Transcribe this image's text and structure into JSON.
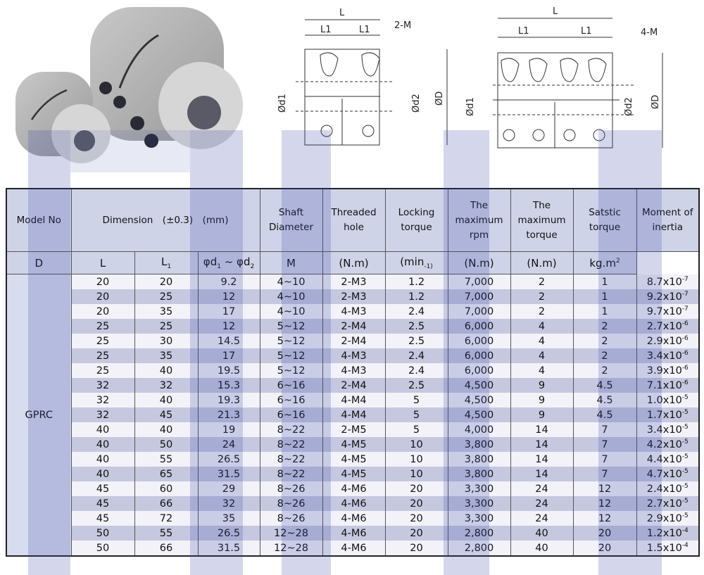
{
  "drawings": {
    "left": {
      "L": "L",
      "L1": "L1",
      "hole": "2-M",
      "d1": "Ød1",
      "d2": "Ød2",
      "D": "ØD"
    },
    "right": {
      "L": "L",
      "L1": "L1",
      "hole": "4-M",
      "d1": "Ød1",
      "d2": "Ød2",
      "D": "ØD"
    }
  },
  "colors": {
    "header_bg": "#cfd3e8",
    "row_alt": "#c5c8df",
    "watermark": "#3b4aa8"
  },
  "table": {
    "headers": [
      "Model No",
      "Dimension　(±0.3)　(mm)",
      "Shaft Diameter",
      "Threaded hole",
      "Locking torque",
      "The maximum rpm",
      "The maximum torque",
      "Satstic torque",
      "Moment of inertia"
    ],
    "subheaders": {
      "D": "D",
      "L": "L",
      "L1": "L",
      "L1_sub": "1",
      "shaft": "φd",
      "shaft_sub1": "1",
      "shaft_mid": " ~ φd",
      "shaft_sub2": "2",
      "M": "M",
      "lock": "(N.m)",
      "rpm": "(min",
      "rpm_sub": "-1)",
      "torque": "(N.m)",
      "static": "(N.m)",
      "inertia": "kg.m",
      "inertia_sup": "2"
    },
    "model": "GPRC",
    "rows": [
      [
        "20",
        "20",
        "9.2",
        "4~10",
        "2-M3",
        "1.2",
        "7,000",
        "2",
        "1",
        "8.7x10",
        "-7"
      ],
      [
        "20",
        "25",
        "12",
        "4~10",
        "2-M3",
        "1.2",
        "7,000",
        "2",
        "1",
        "9.2x10",
        "-7"
      ],
      [
        "20",
        "35",
        "17",
        "4~10",
        "4-M3",
        "2.4",
        "7,000",
        "2",
        "1",
        "9.7x10",
        "-7"
      ],
      [
        "25",
        "25",
        "12",
        "5~12",
        "2-M4",
        "2.5",
        "6,000",
        "4",
        "2",
        "2.7x10",
        "-6"
      ],
      [
        "25",
        "30",
        "14.5",
        "5~12",
        "2-M4",
        "2.5",
        "6,000",
        "4",
        "2",
        "2.9x10",
        "-6"
      ],
      [
        "25",
        "35",
        "17",
        "5~12",
        "4-M3",
        "2.4",
        "6,000",
        "4",
        "2",
        "3.4x10",
        "-6"
      ],
      [
        "25",
        "40",
        "19.5",
        "5~12",
        "4-M3",
        "2.4",
        "6,000",
        "4",
        "2",
        "3.9x10",
        "-6"
      ],
      [
        "32",
        "32",
        "15.3",
        "6~16",
        "2-M4",
        "2.5",
        "4,500",
        "9",
        "4.5",
        "7.1x10",
        "-6"
      ],
      [
        "32",
        "40",
        "19.3",
        "6~16",
        "4-M4",
        "5",
        "4,500",
        "9",
        "4.5",
        "1.0x10",
        "-5"
      ],
      [
        "32",
        "45",
        "21.3",
        "6~16",
        "4-M4",
        "5",
        "4,500",
        "9",
        "4.5",
        "1.7x10",
        "-5"
      ],
      [
        "40",
        "40",
        "19",
        "8~22",
        "2-M5",
        "5",
        "4,000",
        "14",
        "7",
        "3.4x10",
        "-5"
      ],
      [
        "40",
        "50",
        "24",
        "8~22",
        "4-M5",
        "10",
        "3,800",
        "14",
        "7",
        "4.2x10",
        "-5"
      ],
      [
        "40",
        "55",
        "26.5",
        "8~22",
        "4-M5",
        "10",
        "3,800",
        "14",
        "7",
        "4.4x10",
        "-5"
      ],
      [
        "40",
        "65",
        "31.5",
        "8~22",
        "4-M5",
        "10",
        "3,800",
        "14",
        "7",
        "4.7x10",
        "-5"
      ],
      [
        "45",
        "60",
        "29",
        "8~26",
        "4-M6",
        "20",
        "3,300",
        "24",
        "12",
        "2.4x10",
        "-5"
      ],
      [
        "45",
        "66",
        "32",
        "8~26",
        "4-M6",
        "20",
        "3,300",
        "24",
        "12",
        "2.7x10",
        "-5"
      ],
      [
        "45",
        "72",
        "35",
        "8~26",
        "4-M6",
        "20",
        "3,300",
        "24",
        "12",
        "2.9x10",
        "-5"
      ],
      [
        "50",
        "55",
        "26.5",
        "12~28",
        "4-M6",
        "20",
        "2,800",
        "40",
        "20",
        "1.2x10",
        "-4"
      ],
      [
        "50",
        "66",
        "31.5",
        "12~28",
        "4-M6",
        "20",
        "2,800",
        "40",
        "20",
        "1.5x10",
        "-4"
      ]
    ]
  }
}
